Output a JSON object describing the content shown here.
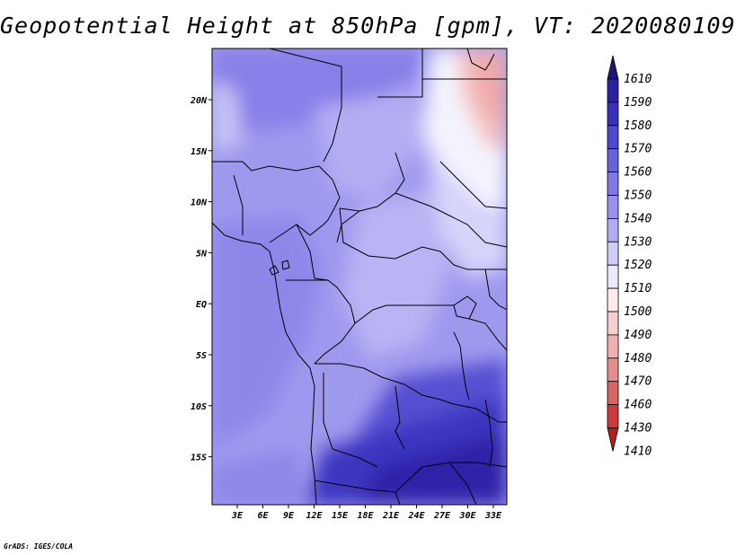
{
  "title": "Geopotential Height at 850hPa [gpm], VT: 2020080109",
  "credit": "GrADS: IGES/COLA",
  "lat_labels": [
    "20N",
    "15N",
    "10N",
    "5N",
    "EQ",
    "5S",
    "10S",
    "15S"
  ],
  "lon_labels": [
    "3E",
    "6E",
    "9E",
    "12E",
    "15E",
    "18E",
    "21E",
    "24E",
    "27E",
    "30E",
    "33E"
  ],
  "colorbar": {
    "labels": [
      "1610",
      "1590",
      "1580",
      "1570",
      "1560",
      "1550",
      "1540",
      "1530",
      "1520",
      "1510",
      "1500",
      "1490",
      "1480",
      "1470",
      "1460",
      "1430",
      "1410"
    ],
    "colors": [
      "#1c147e",
      "#2a20a0",
      "#3a30bc",
      "#5048cf",
      "#6a62dc",
      "#7f78e6",
      "#9891ee",
      "#b2adf3",
      "#cfcdf8",
      "#ebebfb",
      "#fdeaea",
      "#f8cfcf",
      "#f0b1b1",
      "#e68e8e",
      "#da6464",
      "#cd3a3a",
      "#b41e1e"
    ]
  }
}
